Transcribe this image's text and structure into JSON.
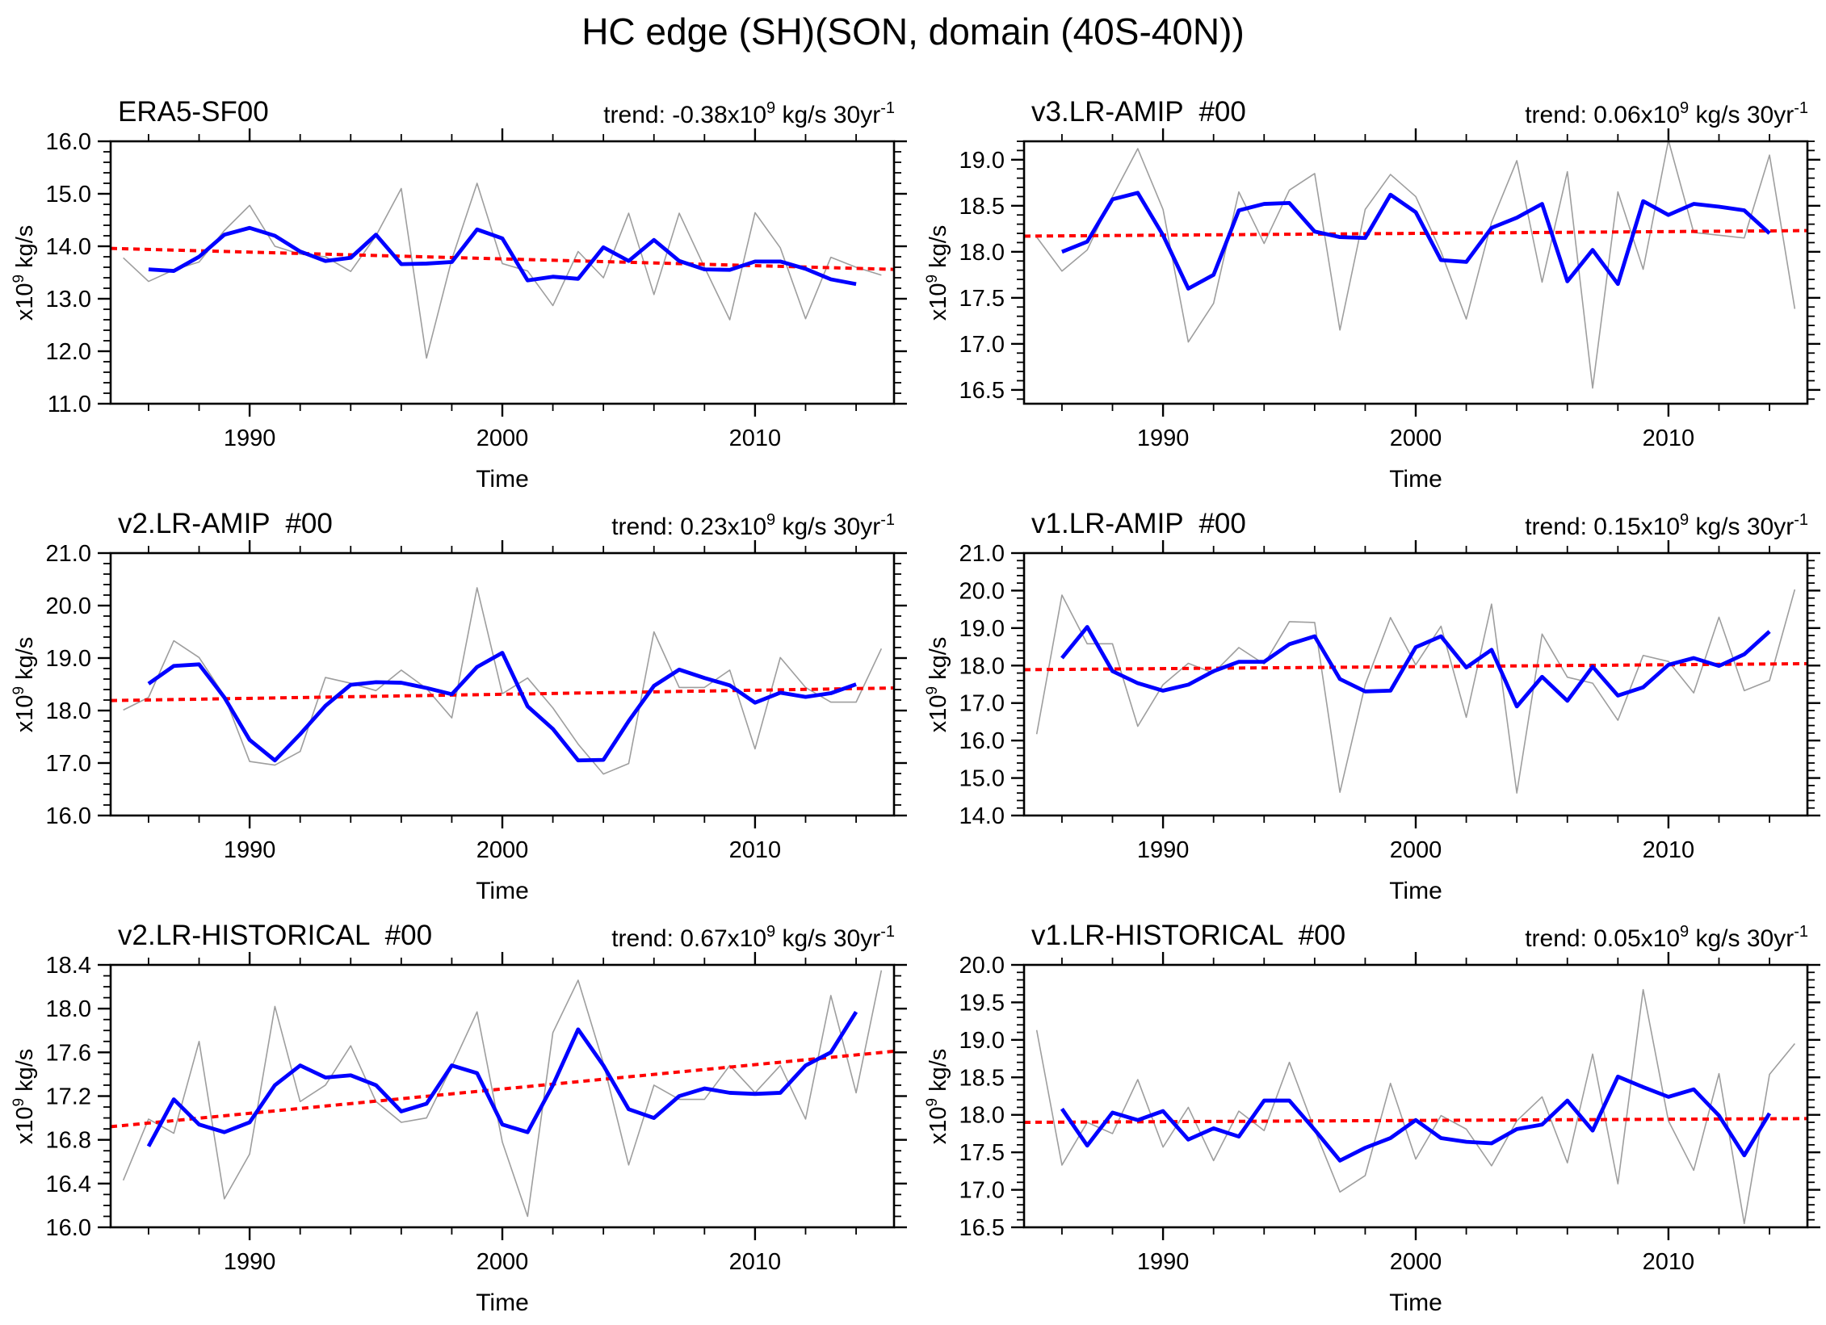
{
  "figure_title": "HC edge (SH)(SON, domain (40S-40N))",
  "shared_axes": {
    "xlabel": "Time",
    "ylabel": {
      "pre": "x10",
      "sup": "9",
      "post": " kg/s"
    },
    "xlim": [
      1984.5,
      2015.5
    ],
    "xticks": [
      1990,
      2000,
      2010
    ],
    "xtick_labels": [
      "1990",
      "2000",
      "2010"
    ],
    "xminor_step": 2,
    "grid": "off",
    "legend": "none"
  },
  "colors": {
    "raw": "#9e9e9e",
    "smoothed": "#0000ff",
    "trend": "#ff0000",
    "frame": "#000000"
  },
  "chart_data": [
    {
      "type": "line",
      "title": "ERA5-SF00",
      "trend_text": {
        "prefix": "trend: -0.38x10",
        "sup1": "9",
        "mid": " kg/s 30yr",
        "sup2": "-1"
      },
      "ylim": [
        11.0,
        16.0
      ],
      "yticks": [
        11.0,
        12.0,
        13.0,
        14.0,
        15.0,
        16.0
      ],
      "ytick_labels": [
        "11.0",
        "12.0",
        "13.0",
        "14.0",
        "15.0",
        "16.0"
      ],
      "yminor_step": 0.2,
      "series": [
        {
          "name": "annual",
          "color_key": "raw",
          "start_year": 1985,
          "values": [
            13.78,
            13.33,
            13.55,
            13.7,
            14.3,
            14.78,
            14.0,
            13.85,
            13.8,
            13.52,
            14.2,
            15.1,
            11.87,
            13.75,
            15.2,
            13.67,
            13.53,
            12.87,
            13.9,
            13.4,
            14.63,
            13.08,
            14.63,
            13.6,
            12.6,
            14.64,
            13.97,
            12.62,
            13.79,
            13.6,
            13.45
          ]
        },
        {
          "name": "smoothed",
          "color_key": "smoothed",
          "start_year": 1986,
          "values": [
            13.56,
            13.53,
            13.8,
            14.22,
            14.35,
            14.2,
            13.9,
            13.72,
            13.78,
            14.22,
            13.66,
            13.67,
            13.7,
            14.32,
            14.15,
            13.35,
            13.42,
            13.38,
            13.98,
            13.72,
            14.12,
            13.72,
            13.56,
            13.55,
            13.71,
            13.71,
            13.57,
            13.37,
            13.28
          ]
        },
        {
          "name": "linear_trend",
          "color_key": "trend",
          "x": [
            1984.5,
            2015.5
          ],
          "values": [
            13.96,
            13.56
          ]
        }
      ]
    },
    {
      "type": "line",
      "title": "v3.LR-AMIP  #00",
      "trend_text": {
        "prefix": "trend: 0.06x10",
        "sup1": "9",
        "mid": " kg/s 30yr",
        "sup2": "-1"
      },
      "ylim": [
        16.35,
        19.2
      ],
      "yticks": [
        16.5,
        17.0,
        17.5,
        18.0,
        18.5,
        19.0
      ],
      "ytick_labels": [
        "16.5",
        "17.0",
        "17.5",
        "18.0",
        "18.5",
        "19.0"
      ],
      "yminor_step": 0.1,
      "series": [
        {
          "name": "annual",
          "color_key": "raw",
          "start_year": 1985,
          "values": [
            18.16,
            17.79,
            18.02,
            18.6,
            19.12,
            18.46,
            17.02,
            17.44,
            18.65,
            18.09,
            18.67,
            18.85,
            17.15,
            18.46,
            18.84,
            18.6,
            18.0,
            17.27,
            18.32,
            18.99,
            17.67,
            18.87,
            16.52,
            18.65,
            17.81,
            19.21,
            18.21,
            18.18,
            18.15,
            19.05,
            17.38
          ]
        },
        {
          "name": "smoothed",
          "color_key": "smoothed",
          "start_year": 1986,
          "values": [
            18.0,
            18.11,
            18.57,
            18.64,
            18.18,
            17.6,
            17.75,
            18.45,
            18.52,
            18.53,
            18.22,
            18.16,
            18.15,
            18.62,
            18.43,
            17.91,
            17.89,
            18.26,
            18.37,
            18.52,
            17.68,
            18.02,
            17.65,
            18.55,
            18.4,
            18.52,
            18.49,
            18.45,
            18.2
          ]
        },
        {
          "name": "linear_trend",
          "color_key": "trend",
          "x": [
            1984.5,
            2015.5
          ],
          "values": [
            18.17,
            18.23
          ]
        }
      ]
    },
    {
      "type": "line",
      "title": "v2.LR-AMIP  #00",
      "trend_text": {
        "prefix": "trend: 0.23x10",
        "sup1": "9",
        "mid": " kg/s 30yr",
        "sup2": "-1"
      },
      "ylim": [
        16.0,
        21.0
      ],
      "yticks": [
        16.0,
        17.0,
        18.0,
        19.0,
        20.0,
        21.0
      ],
      "ytick_labels": [
        "16.0",
        "17.0",
        "18.0",
        "19.0",
        "20.0",
        "21.0"
      ],
      "yminor_step": 0.2,
      "series": [
        {
          "name": "annual",
          "color_key": "raw",
          "start_year": 1985,
          "values": [
            18.01,
            18.25,
            19.33,
            19.01,
            18.28,
            17.03,
            16.96,
            17.22,
            18.63,
            18.52,
            18.38,
            18.77,
            18.42,
            17.86,
            20.34,
            18.32,
            18.62,
            18.05,
            17.36,
            16.79,
            16.99,
            19.5,
            18.44,
            18.44,
            18.77,
            17.27,
            19.01,
            18.44,
            18.16,
            18.16,
            19.18
          ]
        },
        {
          "name": "smoothed",
          "color_key": "smoothed",
          "start_year": 1986,
          "values": [
            18.51,
            18.85,
            18.88,
            18.25,
            17.44,
            17.05,
            17.55,
            18.09,
            18.49,
            18.54,
            18.53,
            18.43,
            18.31,
            18.83,
            19.1,
            18.08,
            17.65,
            17.05,
            17.06,
            17.8,
            18.47,
            18.78,
            18.62,
            18.48,
            18.15,
            18.34,
            18.26,
            18.33,
            18.5
          ]
        },
        {
          "name": "linear_trend",
          "color_key": "trend",
          "x": [
            1984.5,
            2015.5
          ],
          "values": [
            18.19,
            18.43
          ]
        }
      ]
    },
    {
      "type": "line",
      "title": "v1.LR-AMIP  #00",
      "trend_text": {
        "prefix": "trend: 0.15x10",
        "sup1": "9",
        "mid": " kg/s 30yr",
        "sup2": "-1"
      },
      "ylim": [
        14.0,
        21.0
      ],
      "yticks": [
        14.0,
        15.0,
        16.0,
        17.0,
        18.0,
        19.0,
        20.0,
        21.0
      ],
      "ytick_labels": [
        "14.0",
        "15.0",
        "16.0",
        "17.0",
        "18.0",
        "19.0",
        "20.0",
        "21.0"
      ],
      "yminor_step": 0.2,
      "series": [
        {
          "name": "annual",
          "color_key": "raw",
          "start_year": 1985,
          "values": [
            16.17,
            19.88,
            18.58,
            18.58,
            16.38,
            17.49,
            18.06,
            17.8,
            18.48,
            18.04,
            19.17,
            19.15,
            14.62,
            17.49,
            19.28,
            18.02,
            19.05,
            16.62,
            19.64,
            14.6,
            18.84,
            17.69,
            17.53,
            16.54,
            18.27,
            18.11,
            17.27,
            19.29,
            17.33,
            17.6,
            20.03
          ]
        },
        {
          "name": "smoothed",
          "color_key": "smoothed",
          "start_year": 1986,
          "values": [
            18.2,
            19.03,
            17.85,
            17.53,
            17.33,
            17.49,
            17.85,
            18.1,
            18.1,
            18.57,
            18.78,
            17.64,
            17.31,
            17.33,
            18.49,
            18.78,
            17.95,
            18.42,
            16.91,
            17.7,
            17.06,
            17.97,
            17.2,
            17.42,
            18.02,
            18.2,
            17.99,
            18.3,
            18.91
          ]
        },
        {
          "name": "linear_trend",
          "color_key": "trend",
          "x": [
            1984.5,
            2015.5
          ],
          "values": [
            17.89,
            18.05
          ]
        }
      ]
    },
    {
      "type": "line",
      "title": "v2.LR-HISTORICAL  #00",
      "trend_text": {
        "prefix": "trend: 0.67x10",
        "sup1": "9",
        "mid": " kg/s 30yr",
        "sup2": "-1"
      },
      "ylim": [
        16.0,
        18.4
      ],
      "yticks": [
        16.0,
        16.4,
        16.8,
        17.2,
        17.6,
        18.0,
        18.4
      ],
      "ytick_labels": [
        "16.0",
        "16.4",
        "16.8",
        "17.2",
        "17.6",
        "18.0",
        "18.4"
      ],
      "yminor_step": 0.1,
      "series": [
        {
          "name": "annual",
          "color_key": "raw",
          "start_year": 1985,
          "values": [
            16.43,
            16.99,
            16.86,
            17.7,
            16.26,
            16.67,
            18.02,
            17.15,
            17.3,
            17.66,
            17.15,
            16.96,
            17.0,
            17.47,
            17.97,
            16.78,
            16.1,
            17.78,
            18.26,
            17.5,
            16.57,
            17.3,
            17.17,
            17.17,
            17.48,
            17.23,
            17.48,
            16.99,
            18.12,
            17.23,
            18.35
          ]
        },
        {
          "name": "smoothed",
          "color_key": "smoothed",
          "start_year": 1986,
          "values": [
            16.74,
            17.17,
            16.94,
            16.87,
            16.96,
            17.3,
            17.48,
            17.37,
            17.39,
            17.3,
            17.06,
            17.13,
            17.48,
            17.41,
            16.94,
            16.87,
            17.3,
            17.81,
            17.48,
            17.08,
            17.0,
            17.2,
            17.27,
            17.23,
            17.22,
            17.23,
            17.48,
            17.6,
            17.97
          ]
        },
        {
          "name": "linear_trend",
          "color_key": "trend",
          "x": [
            1984.5,
            2015.5
          ],
          "values": [
            16.92,
            17.61
          ]
        }
      ]
    },
    {
      "type": "line",
      "title": "v1.LR-HISTORICAL  #00",
      "trend_text": {
        "prefix": "trend: 0.05x10",
        "sup1": "9",
        "mid": " kg/s 30yr",
        "sup2": "-1"
      },
      "ylim": [
        16.5,
        20.0
      ],
      "yticks": [
        16.5,
        17.0,
        17.5,
        18.0,
        18.5,
        19.0,
        19.5,
        20.0
      ],
      "ytick_labels": [
        "16.5",
        "17.0",
        "17.5",
        "18.0",
        "18.5",
        "19.0",
        "19.5",
        "20.0"
      ],
      "yminor_step": 0.1,
      "series": [
        {
          "name": "annual",
          "color_key": "raw",
          "start_year": 1985,
          "values": [
            19.13,
            17.33,
            17.9,
            17.75,
            18.47,
            17.57,
            18.1,
            17.39,
            18.05,
            17.79,
            18.7,
            17.8,
            16.97,
            17.19,
            18.42,
            17.41,
            17.99,
            17.81,
            17.32,
            17.92,
            18.24,
            17.36,
            18.81,
            17.08,
            19.67,
            17.92,
            17.26,
            18.55,
            16.55,
            18.54,
            18.95
          ]
        },
        {
          "name": "smoothed",
          "color_key": "smoothed",
          "start_year": 1986,
          "values": [
            18.08,
            17.59,
            18.03,
            17.93,
            18.05,
            17.67,
            17.82,
            17.71,
            18.19,
            18.19,
            17.8,
            17.39,
            17.56,
            17.69,
            17.93,
            17.69,
            17.64,
            17.62,
            17.81,
            17.87,
            18.19,
            17.79,
            18.51,
            18.37,
            18.24,
            18.34,
            17.99,
            17.46,
            18.02
          ]
        },
        {
          "name": "linear_trend",
          "color_key": "trend",
          "x": [
            1984.5,
            2015.5
          ],
          "values": [
            17.9,
            17.95
          ]
        }
      ]
    }
  ]
}
